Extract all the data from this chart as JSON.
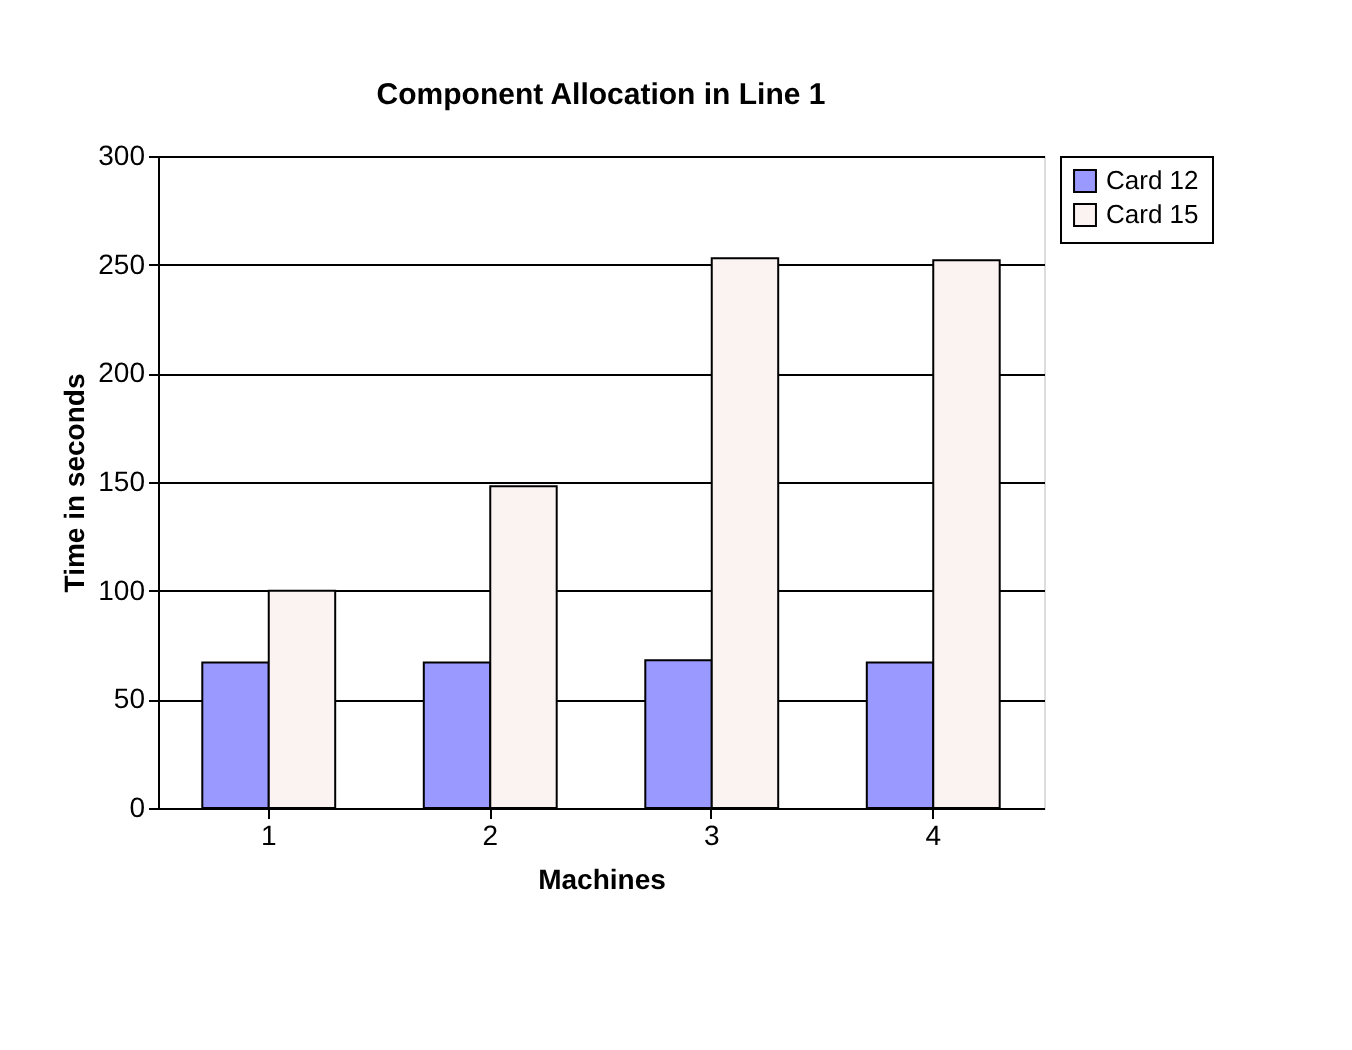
{
  "chart_data": {
    "type": "bar",
    "title": "Component Allocation in Line 1",
    "xlabel": "Machines",
    "ylabel": "Time in seconds",
    "categories": [
      "1",
      "2",
      "3",
      "4"
    ],
    "series": [
      {
        "name": "Card 12",
        "color": "#9999ff",
        "values": [
          67,
          67,
          68,
          67
        ]
      },
      {
        "name": "Card 15",
        "color": "#fbf2f2",
        "values": [
          100,
          148,
          253,
          252
        ]
      }
    ],
    "ylim": [
      0,
      300
    ],
    "yticks": [
      0,
      50,
      100,
      150,
      200,
      250,
      300
    ],
    "grid": "y",
    "legend": "right"
  }
}
